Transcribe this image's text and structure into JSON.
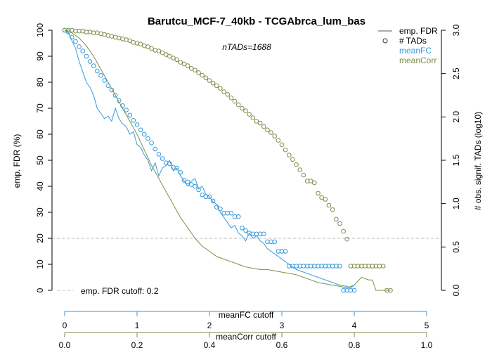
{
  "chart_data": {
    "type": "line",
    "title": "Barutcu_MCF-7_40kb - TCGAbrca_lum_bas",
    "subtitle": "nTADs=1688",
    "y_left": {
      "label": "emp. FDR (%)",
      "range": [
        0,
        100
      ],
      "ticks": [
        "0",
        "10",
        "20",
        "30",
        "40",
        "50",
        "60",
        "70",
        "80",
        "90",
        "100"
      ]
    },
    "y_right": {
      "label": "# obs. signif. TADs (log10)",
      "range": [
        0,
        3
      ],
      "ticks": [
        "0.0",
        "0.5",
        "1.0",
        "1.5",
        "2.0",
        "2.5",
        "3.0"
      ]
    },
    "x_meanFC": {
      "label": "meanFC cutoff",
      "range": [
        0,
        5
      ],
      "ticks": [
        "0",
        "1",
        "2",
        "3",
        "4",
        "5"
      ],
      "color": "#3399dd"
    },
    "x_meanCorr": {
      "label": "meanCorr cutoff",
      "range": [
        0,
        1
      ],
      "ticks": [
        "0.0",
        "0.2",
        "0.4",
        "0.6",
        "0.8",
        "1.0"
      ],
      "color": "#7a8f4a"
    },
    "fdr_cutoff": {
      "value": 20,
      "label": "emp. FDR cutoff: 0.2"
    },
    "legend": {
      "position": "top-right",
      "items": [
        {
          "label": "emp. FDR",
          "kind": "line",
          "color": "#555555"
        },
        {
          "label": "# TADs",
          "kind": "circle",
          "color": "#333333"
        },
        {
          "label": "meanFC",
          "kind": "text",
          "color": "#3399dd"
        },
        {
          "label": "meanCorr",
          "kind": "text",
          "color": "#7a8f4a"
        }
      ]
    },
    "series": [
      {
        "name": "meanFC",
        "axis_x": "meanFC",
        "color": "#3399dd",
        "fdr_line": [
          [
            0,
            100
          ],
          [
            0.05,
            99
          ],
          [
            0.1,
            96
          ],
          [
            0.15,
            93
          ],
          [
            0.2,
            88
          ],
          [
            0.25,
            84
          ],
          [
            0.3,
            80
          ],
          [
            0.35,
            78
          ],
          [
            0.4,
            75
          ],
          [
            0.45,
            70
          ],
          [
            0.5,
            68
          ],
          [
            0.55,
            66
          ],
          [
            0.6,
            67
          ],
          [
            0.65,
            65
          ],
          [
            0.7,
            70
          ],
          [
            0.75,
            66
          ],
          [
            0.8,
            64
          ],
          [
            0.85,
            63
          ],
          [
            0.9,
            60
          ],
          [
            0.95,
            61
          ],
          [
            1.0,
            56
          ],
          [
            1.05,
            55
          ],
          [
            1.1,
            52
          ],
          [
            1.15,
            50
          ],
          [
            1.2,
            46
          ],
          [
            1.25,
            49
          ],
          [
            1.3,
            44
          ],
          [
            1.35,
            47
          ],
          [
            1.4,
            48
          ],
          [
            1.45,
            50
          ],
          [
            1.5,
            46
          ],
          [
            1.55,
            47
          ],
          [
            1.6,
            44
          ],
          [
            1.65,
            42
          ],
          [
            1.7,
            40
          ],
          [
            1.75,
            42
          ],
          [
            1.8,
            43
          ],
          [
            1.85,
            39
          ],
          [
            1.9,
            40
          ],
          [
            1.95,
            37
          ],
          [
            2.0,
            36
          ],
          [
            2.05,
            34
          ],
          [
            2.1,
            33
          ],
          [
            2.15,
            30
          ],
          [
            2.2,
            28
          ],
          [
            2.25,
            26
          ],
          [
            2.3,
            24
          ],
          [
            2.35,
            25
          ],
          [
            2.4,
            22
          ],
          [
            2.45,
            21
          ],
          [
            2.5,
            19
          ],
          [
            2.55,
            22
          ],
          [
            2.6,
            20
          ],
          [
            2.65,
            21
          ],
          [
            2.7,
            19
          ],
          [
            2.75,
            18
          ],
          [
            2.8,
            16
          ],
          [
            2.85,
            15
          ],
          [
            2.9,
            14
          ],
          [
            2.95,
            13
          ],
          [
            3.0,
            12
          ],
          [
            3.1,
            10
          ],
          [
            3.2,
            8
          ],
          [
            3.3,
            7
          ],
          [
            3.4,
            6
          ],
          [
            3.5,
            5
          ],
          [
            3.6,
            4
          ],
          [
            3.7,
            3
          ],
          [
            3.8,
            2
          ],
          [
            3.9,
            1.5
          ],
          [
            3.95,
            1
          ],
          [
            4.0,
            2
          ]
        ],
        "tads_points": [
          [
            0,
            3.0
          ],
          [
            0.05,
            2.98
          ],
          [
            0.1,
            2.92
          ],
          [
            0.15,
            2.87
          ],
          [
            0.2,
            2.81
          ],
          [
            0.25,
            2.76
          ],
          [
            0.3,
            2.7
          ],
          [
            0.35,
            2.64
          ],
          [
            0.4,
            2.59
          ],
          [
            0.45,
            2.53
          ],
          [
            0.5,
            2.48
          ],
          [
            0.55,
            2.42
          ],
          [
            0.6,
            2.36
          ],
          [
            0.65,
            2.31
          ],
          [
            0.7,
            2.25
          ],
          [
            0.75,
            2.19
          ],
          [
            0.8,
            2.13
          ],
          [
            0.85,
            2.08
          ],
          [
            0.9,
            2.02
          ],
          [
            0.95,
            1.96
          ],
          [
            1.0,
            1.91
          ],
          [
            1.05,
            1.85
          ],
          [
            1.1,
            1.8
          ],
          [
            1.15,
            1.75
          ],
          [
            1.2,
            1.7
          ],
          [
            1.25,
            1.63
          ],
          [
            1.3,
            1.57
          ],
          [
            1.35,
            1.52
          ],
          [
            1.4,
            1.47
          ],
          [
            1.45,
            1.46
          ],
          [
            1.5,
            1.42
          ],
          [
            1.55,
            1.41
          ],
          [
            1.6,
            1.36
          ],
          [
            1.65,
            1.27
          ],
          [
            1.7,
            1.25
          ],
          [
            1.75,
            1.22
          ],
          [
            1.8,
            1.2
          ],
          [
            1.85,
            1.16
          ],
          [
            1.9,
            1.1
          ],
          [
            1.95,
            1.08
          ],
          [
            2.0,
            1.08
          ],
          [
            2.05,
            1.03
          ],
          [
            2.1,
            0.96
          ],
          [
            2.15,
            0.94
          ],
          [
            2.2,
            0.89
          ],
          [
            2.25,
            0.89
          ],
          [
            2.3,
            0.89
          ],
          [
            2.35,
            0.85
          ],
          [
            2.4,
            0.85
          ],
          [
            2.45,
            0.72
          ],
          [
            2.5,
            0.69
          ],
          [
            2.55,
            0.66
          ],
          [
            2.6,
            0.65
          ],
          [
            2.65,
            0.65
          ],
          [
            2.7,
            0.65
          ],
          [
            2.75,
            0.65
          ],
          [
            2.8,
            0.56
          ],
          [
            2.85,
            0.56
          ],
          [
            2.9,
            0.56
          ],
          [
            2.95,
            0.45
          ],
          [
            3.0,
            0.45
          ],
          [
            3.05,
            0.45
          ],
          [
            3.1,
            0.28
          ],
          [
            3.15,
            0.28
          ],
          [
            3.2,
            0.28
          ],
          [
            3.25,
            0.28
          ],
          [
            3.3,
            0.28
          ],
          [
            3.35,
            0.28
          ],
          [
            3.4,
            0.28
          ],
          [
            3.45,
            0.28
          ],
          [
            3.5,
            0.28
          ],
          [
            3.55,
            0.28
          ],
          [
            3.6,
            0.28
          ],
          [
            3.65,
            0.28
          ],
          [
            3.7,
            0.28
          ],
          [
            3.75,
            0.28
          ],
          [
            3.8,
            0.28
          ],
          [
            3.85,
            0.0
          ],
          [
            3.9,
            0.0
          ],
          [
            3.95,
            0.0
          ],
          [
            4.0,
            0.0
          ]
        ]
      },
      {
        "name": "meanCorr",
        "axis_x": "meanCorr",
        "color": "#7a8f4a",
        "fdr_line": [
          [
            0,
            100
          ],
          [
            0.02,
            99
          ],
          [
            0.04,
            97
          ],
          [
            0.06,
            94
          ],
          [
            0.08,
            90
          ],
          [
            0.1,
            85
          ],
          [
            0.12,
            80
          ],
          [
            0.14,
            75
          ],
          [
            0.16,
            70
          ],
          [
            0.18,
            65
          ],
          [
            0.2,
            60
          ],
          [
            0.22,
            54
          ],
          [
            0.24,
            48
          ],
          [
            0.26,
            43
          ],
          [
            0.28,
            38
          ],
          [
            0.3,
            33
          ],
          [
            0.32,
            28
          ],
          [
            0.34,
            24
          ],
          [
            0.36,
            20
          ],
          [
            0.38,
            17
          ],
          [
            0.4,
            15
          ],
          [
            0.42,
            13
          ],
          [
            0.44,
            12
          ],
          [
            0.46,
            11
          ],
          [
            0.48,
            10
          ],
          [
            0.5,
            9
          ],
          [
            0.52,
            8.5
          ],
          [
            0.54,
            8
          ],
          [
            0.56,
            8
          ],
          [
            0.58,
            7.5
          ],
          [
            0.6,
            7
          ],
          [
            0.62,
            6.5
          ],
          [
            0.64,
            6
          ],
          [
            0.66,
            5
          ],
          [
            0.68,
            4
          ],
          [
            0.7,
            3
          ],
          [
            0.72,
            2.5
          ],
          [
            0.74,
            2
          ],
          [
            0.76,
            1.5
          ],
          [
            0.78,
            1
          ],
          [
            0.8,
            2
          ],
          [
            0.82,
            5
          ],
          [
            0.84,
            4
          ],
          [
            0.85,
            4
          ],
          [
            0.86,
            0
          ],
          [
            0.9,
            0
          ]
        ],
        "tads_points": [
          [
            0.0,
            3.0
          ],
          [
            0.01,
            3.0
          ],
          [
            0.02,
            3.0
          ],
          [
            0.03,
            2.99
          ],
          [
            0.04,
            2.99
          ],
          [
            0.05,
            2.99
          ],
          [
            0.06,
            2.98
          ],
          [
            0.07,
            2.98
          ],
          [
            0.08,
            2.97
          ],
          [
            0.09,
            2.97
          ],
          [
            0.1,
            2.96
          ],
          [
            0.11,
            2.95
          ],
          [
            0.12,
            2.94
          ],
          [
            0.13,
            2.93
          ],
          [
            0.14,
            2.92
          ],
          [
            0.15,
            2.91
          ],
          [
            0.16,
            2.9
          ],
          [
            0.17,
            2.89
          ],
          [
            0.18,
            2.88
          ],
          [
            0.19,
            2.86
          ],
          [
            0.2,
            2.85
          ],
          [
            0.21,
            2.84
          ],
          [
            0.22,
            2.82
          ],
          [
            0.23,
            2.81
          ],
          [
            0.24,
            2.79
          ],
          [
            0.25,
            2.77
          ],
          [
            0.26,
            2.76
          ],
          [
            0.27,
            2.74
          ],
          [
            0.28,
            2.72
          ],
          [
            0.29,
            2.7
          ],
          [
            0.3,
            2.68
          ],
          [
            0.31,
            2.66
          ],
          [
            0.32,
            2.63
          ],
          [
            0.33,
            2.61
          ],
          [
            0.34,
            2.59
          ],
          [
            0.35,
            2.56
          ],
          [
            0.36,
            2.54
          ],
          [
            0.37,
            2.51
          ],
          [
            0.38,
            2.48
          ],
          [
            0.39,
            2.45
          ],
          [
            0.4,
            2.42
          ],
          [
            0.41,
            2.39
          ],
          [
            0.42,
            2.36
          ],
          [
            0.43,
            2.33
          ],
          [
            0.44,
            2.29
          ],
          [
            0.45,
            2.26
          ],
          [
            0.46,
            2.22
          ],
          [
            0.47,
            2.18
          ],
          [
            0.48,
            2.14
          ],
          [
            0.49,
            2.1
          ],
          [
            0.5,
            2.07
          ],
          [
            0.51,
            2.03
          ],
          [
            0.52,
            1.99
          ],
          [
            0.53,
            1.95
          ],
          [
            0.54,
            1.93
          ],
          [
            0.55,
            1.89
          ],
          [
            0.56,
            1.85
          ],
          [
            0.57,
            1.82
          ],
          [
            0.58,
            1.78
          ],
          [
            0.59,
            1.73
          ],
          [
            0.6,
            1.68
          ],
          [
            0.61,
            1.62
          ],
          [
            0.62,
            1.56
          ],
          [
            0.63,
            1.51
          ],
          [
            0.64,
            1.45
          ],
          [
            0.65,
            1.39
          ],
          [
            0.66,
            1.33
          ],
          [
            0.67,
            1.26
          ],
          [
            0.68,
            1.26
          ],
          [
            0.69,
            1.24
          ],
          [
            0.7,
            1.12
          ],
          [
            0.71,
            1.07
          ],
          [
            0.72,
            1.05
          ],
          [
            0.73,
            0.98
          ],
          [
            0.74,
            0.93
          ],
          [
            0.75,
            0.82
          ],
          [
            0.76,
            0.77
          ],
          [
            0.77,
            0.68
          ],
          [
            0.78,
            0.59
          ],
          [
            0.79,
            0.28
          ],
          [
            0.8,
            0.28
          ],
          [
            0.81,
            0.28
          ],
          [
            0.82,
            0.28
          ],
          [
            0.83,
            0.28
          ],
          [
            0.84,
            0.28
          ],
          [
            0.85,
            0.28
          ],
          [
            0.86,
            0.28
          ],
          [
            0.87,
            0.28
          ],
          [
            0.88,
            0.28
          ],
          [
            0.89,
            0.0
          ],
          [
            0.9,
            0.0
          ]
        ]
      }
    ]
  }
}
